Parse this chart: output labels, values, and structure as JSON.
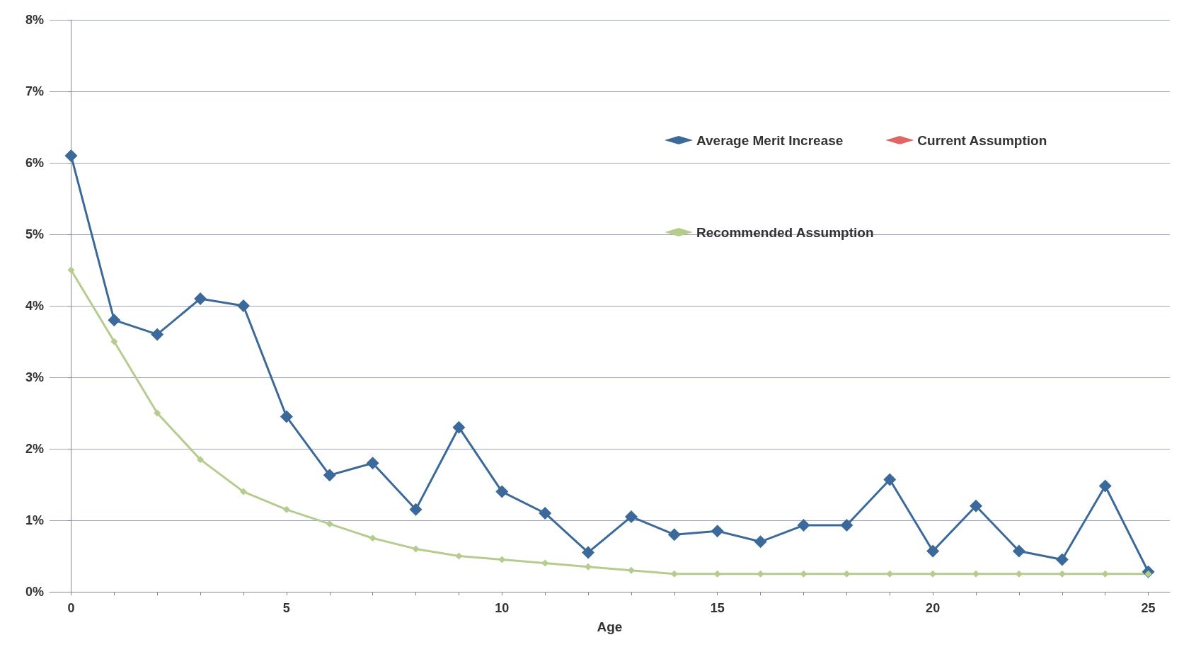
{
  "chart_data": {
    "type": "line",
    "xlabel": "Age",
    "x": [
      0,
      1,
      2,
      3,
      4,
      5,
      6,
      7,
      8,
      9,
      10,
      11,
      12,
      13,
      14,
      15,
      16,
      17,
      18,
      19,
      20,
      21,
      22,
      23,
      24,
      25
    ],
    "series": [
      {
        "name": "Average Merit Increase",
        "color": "#3b6a9a",
        "values": [
          6.1,
          3.8,
          3.6,
          4.1,
          4.0,
          2.45,
          1.63,
          1.8,
          1.15,
          2.3,
          1.4,
          1.1,
          0.55,
          1.05,
          0.8,
          0.85,
          0.7,
          0.93,
          0.93,
          1.57,
          0.57,
          1.2,
          0.57,
          0.45,
          1.48,
          0.28
        ]
      },
      {
        "name": "Current Assumption",
        "color": "#e06666",
        "values": [
          null,
          null,
          null,
          null,
          null,
          null,
          null,
          null,
          null,
          null,
          null,
          null,
          null,
          null,
          null,
          null,
          null,
          null,
          null,
          null,
          null,
          null,
          null,
          null,
          null,
          null
        ]
      },
      {
        "name": "Recommended Assumption",
        "color": "#b5cc8e",
        "values": [
          4.5,
          3.5,
          2.5,
          1.85,
          1.4,
          1.15,
          0.95,
          0.75,
          0.6,
          0.5,
          0.45,
          0.4,
          0.35,
          0.3,
          0.25,
          0.25,
          0.25,
          0.25,
          0.25,
          0.25,
          0.25,
          0.25,
          0.25,
          0.25,
          0.25,
          0.25
        ]
      }
    ],
    "xlim": [
      -0.5,
      25.5
    ],
    "xticks": [
      0,
      {
        "value": 1,
        "label": null
      },
      {
        "value": 2,
        "label": null
      },
      {
        "value": 3,
        "label": null
      },
      {
        "value": 4,
        "label": null
      },
      5,
      {
        "value": 6,
        "label": null
      },
      {
        "value": 7,
        "label": null
      },
      {
        "value": 8,
        "label": null
      },
      {
        "value": 9,
        "label": null
      },
      10,
      {
        "value": 11,
        "label": null
      },
      {
        "value": 12,
        "label": null
      },
      {
        "value": 13,
        "label": null
      },
      {
        "value": 14,
        "label": null
      },
      15,
      {
        "value": 16,
        "label": null
      },
      {
        "value": 17,
        "label": null
      },
      {
        "value": 18,
        "label": null
      },
      {
        "value": 19,
        "label": null
      },
      20,
      {
        "value": 21,
        "label": null
      },
      {
        "value": 22,
        "label": null
      },
      {
        "value": 23,
        "label": null
      },
      {
        "value": 24,
        "label": null
      },
      25
    ],
    "ylim": [
      0,
      8
    ],
    "yticks": [
      {
        "value": 0,
        "label": "0%"
      },
      {
        "value": 1,
        "label": "1%"
      },
      {
        "value": 2,
        "label": "2%"
      },
      {
        "value": 3,
        "label": "3%"
      },
      {
        "value": 4,
        "label": "4%"
      },
      {
        "value": 5,
        "label": "5%"
      },
      {
        "value": 6,
        "label": "6%"
      },
      {
        "value": 7,
        "label": "7%"
      },
      {
        "value": 8,
        "label": "8%"
      }
    ],
    "grid": "y",
    "legend": "top right",
    "marker": "diamond",
    "line_style": "solid"
  }
}
